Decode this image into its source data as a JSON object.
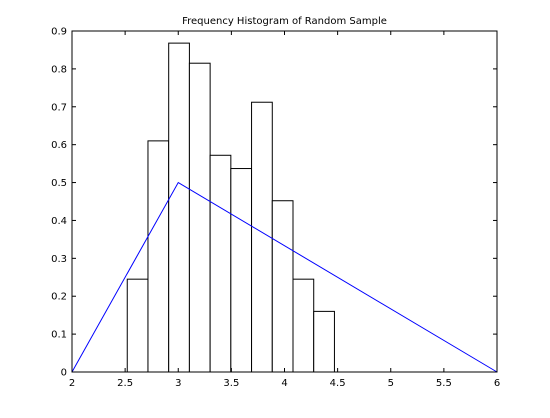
{
  "chart_data": {
    "type": "bar",
    "title": "Frequency Histogram of Random Sample",
    "xlabel": "",
    "ylabel": "",
    "xlim": [
      2,
      6
    ],
    "ylim": [
      0,
      0.9
    ],
    "grid": false,
    "legend": "none",
    "x_ticks": [
      2,
      2.5,
      3,
      3.5,
      4,
      4.5,
      5,
      5.5,
      6
    ],
    "x_tick_labels": [
      "2",
      "2.5",
      "3",
      "3.5",
      "4",
      "4.5",
      "5",
      "5.5",
      "6"
    ],
    "y_ticks": [
      0,
      0.1,
      0.2,
      0.3,
      0.4,
      0.5,
      0.6,
      0.7,
      0.8,
      0.9
    ],
    "y_tick_labels": [
      "0",
      "0.1",
      "0.2",
      "0.3",
      "0.4",
      "0.5",
      "0.6",
      "0.7",
      "0.8",
      "0.9"
    ],
    "histogram": {
      "bin_edges": [
        2.52,
        2.715,
        2.91,
        3.105,
        3.3,
        3.495,
        3.69,
        3.885,
        4.08,
        4.275,
        4.47
      ],
      "values": [
        0.245,
        0.61,
        0.868,
        0.815,
        0.572,
        0.537,
        0.712,
        0.452,
        0.245,
        0.16
      ],
      "fill": "#ffffff",
      "edge_color": "#000000"
    },
    "line": {
      "x": [
        2,
        3,
        6
      ],
      "y": [
        0,
        0.5,
        0
      ],
      "color": "#0000ff"
    }
  }
}
